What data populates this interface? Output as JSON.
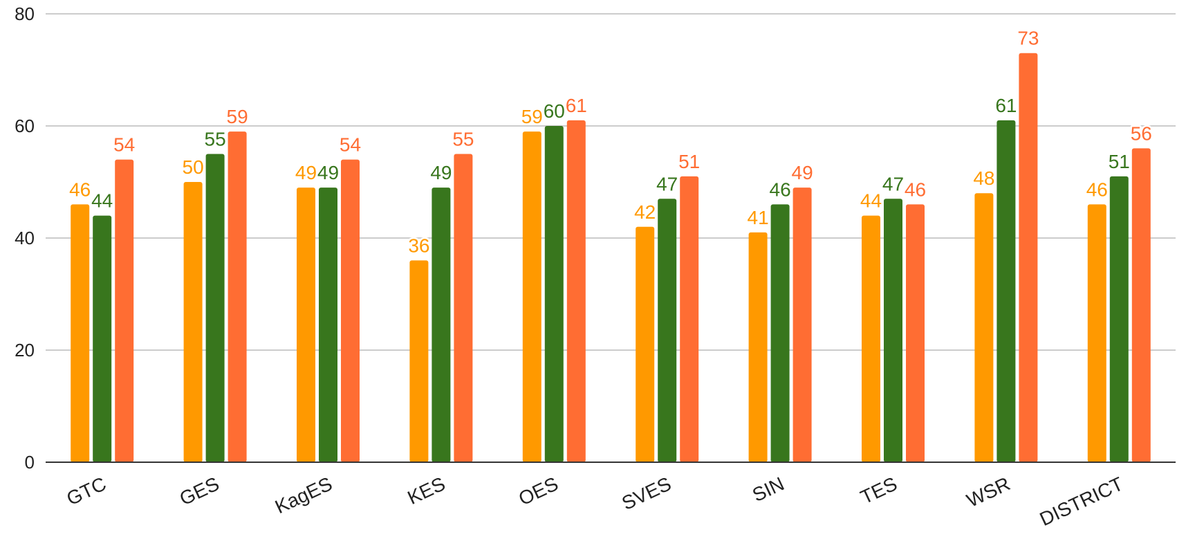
{
  "chart_data": {
    "type": "bar",
    "title": "",
    "xlabel": "",
    "ylabel": "",
    "ylim": [
      0,
      80
    ],
    "yticks": [
      0,
      20,
      40,
      60,
      80
    ],
    "grid": true,
    "legend": "none",
    "categories": [
      "GTC",
      "GES",
      "KagES",
      "KES",
      "OES",
      "SVES",
      "SIN",
      "TES",
      "WSR",
      "DISTRICT"
    ],
    "series": [
      {
        "color": "#FF9900",
        "values": [
          46,
          50,
          49,
          36,
          59,
          42,
          41,
          44,
          48,
          46
        ]
      },
      {
        "color": "#38761D",
        "values": [
          44,
          55,
          49,
          49,
          60,
          47,
          46,
          47,
          61,
          51
        ]
      },
      {
        "color": "#FF6D33",
        "values": [
          54,
          59,
          54,
          55,
          61,
          51,
          49,
          46,
          73,
          56
        ]
      }
    ]
  }
}
